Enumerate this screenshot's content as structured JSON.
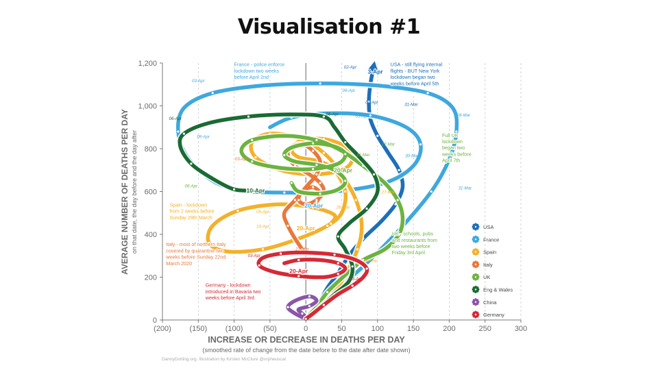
{
  "slide": {
    "title": "Visualisation #1"
  },
  "credit": "DannyDorling.org. Illustration by Kirsten McClure @orpheuscat",
  "chart_data": {
    "type": "line",
    "title": "",
    "xlabel": "INCREASE OR DECREASE IN DEATHS PER DAY",
    "xlabel_sub": "(smoothed rate of change from the date before to the date after date shown)",
    "ylabel": "AVERAGE NUMBER OF DEATHS PER DAY",
    "ylabel_sub": "on that date, the day before and the day after",
    "xlim": [
      -200,
      300
    ],
    "ylim": [
      0,
      1200
    ],
    "x_ticks": [
      -200,
      -150,
      -100,
      -50,
      0,
      50,
      100,
      150,
      200,
      250,
      300
    ],
    "x_tick_labels": [
      "(200)",
      "(150)",
      "(100)",
      "(50)",
      "0",
      "50",
      "100",
      "150",
      "200",
      "250",
      "300"
    ],
    "y_ticks": [
      0,
      200,
      400,
      600,
      800,
      1000,
      1200
    ],
    "y_tick_labels": [
      "0",
      "200",
      "400",
      "600",
      "800",
      "1,000",
      "1,200"
    ],
    "grid": "vertical dashed",
    "legend_position": "right",
    "series": [
      {
        "name": "USA",
        "color": "#1d6fb8",
        "points": [
          [
            2,
            5
          ],
          [
            10,
            40
          ],
          [
            20,
            90
          ],
          [
            30,
            150
          ],
          [
            45,
            220
          ],
          [
            60,
            300
          ],
          [
            80,
            380
          ],
          [
            105,
            460
          ],
          [
            125,
            540
          ],
          [
            135,
            620
          ],
          [
            130,
            700
          ],
          [
            115,
            780
          ],
          [
            100,
            860
          ],
          [
            90,
            940
          ],
          [
            88,
            1020
          ],
          [
            90,
            1100
          ],
          [
            95,
            1190
          ]
        ]
      },
      {
        "name": "France",
        "color": "#3ea8de",
        "points": [
          [
            0,
            5
          ],
          [
            12,
            40
          ],
          [
            25,
            80
          ],
          [
            45,
            150
          ],
          [
            80,
            250
          ],
          [
            130,
            420
          ],
          [
            175,
            600
          ],
          [
            200,
            750
          ],
          [
            210,
            880
          ],
          [
            205,
            990
          ],
          [
            170,
            1060
          ],
          [
            100,
            1095
          ],
          [
            20,
            1105
          ],
          [
            -60,
            1095
          ],
          [
            -130,
            1060
          ],
          [
            -170,
            990
          ],
          [
            -178,
            880
          ],
          [
            -165,
            760
          ],
          [
            -130,
            650
          ],
          [
            -90,
            605
          ],
          [
            -30,
            595
          ],
          [
            40,
            600
          ],
          [
            110,
            640
          ],
          [
            150,
            720
          ],
          [
            160,
            820
          ],
          [
            140,
            900
          ],
          [
            90,
            955
          ],
          [
            30,
            965
          ],
          [
            -20,
            945
          ],
          [
            -50,
            900
          ]
        ]
      },
      {
        "name": "Spain",
        "color": "#f3b12a",
        "points": [
          [
            0,
            5
          ],
          [
            15,
            40
          ],
          [
            35,
            110
          ],
          [
            55,
            210
          ],
          [
            72,
            330
          ],
          [
            78,
            440
          ],
          [
            70,
            560
          ],
          [
            50,
            680
          ],
          [
            25,
            780
          ],
          [
            -10,
            850
          ],
          [
            -50,
            870
          ],
          [
            -75,
            830
          ],
          [
            -70,
            760
          ],
          [
            -35,
            700
          ],
          [
            10,
            680
          ],
          [
            50,
            700
          ],
          [
            65,
            750
          ],
          [
            55,
            810
          ],
          [
            25,
            845
          ],
          [
            -5,
            840
          ],
          [
            -20,
            800
          ],
          [
            -10,
            760
          ],
          [
            20,
            740
          ],
          [
            40,
            700
          ],
          [
            55,
            600
          ],
          [
            50,
            500
          ],
          [
            30,
            440
          ],
          [
            -10,
            380
          ],
          [
            -60,
            330
          ],
          [
            -110,
            320
          ],
          [
            -135,
            360
          ],
          [
            -130,
            440
          ],
          [
            -95,
            510
          ],
          [
            -40,
            540
          ],
          [
            10,
            525
          ],
          [
            40,
            490
          ],
          [
            35,
            450
          ]
        ]
      },
      {
        "name": "Italy",
        "color": "#e8793b",
        "points": [
          [
            -5,
            330
          ],
          [
            -15,
            380
          ],
          [
            -25,
            440
          ],
          [
            -30,
            500
          ],
          [
            -15,
            560
          ],
          [
            0,
            620
          ],
          [
            15,
            680
          ],
          [
            20,
            740
          ],
          [
            10,
            790
          ],
          [
            -5,
            820
          ],
          [
            -20,
            810
          ],
          [
            -25,
            770
          ],
          [
            -15,
            720
          ],
          [
            5,
            680
          ],
          [
            20,
            640
          ],
          [
            25,
            600
          ],
          [
            15,
            560
          ],
          [
            0,
            540
          ],
          [
            -10,
            560
          ],
          [
            -5,
            600
          ],
          [
            10,
            620
          ],
          [
            20,
            590
          ],
          [
            15,
            550
          ]
        ]
      },
      {
        "name": "UK",
        "color": "#6cb33f",
        "points": [
          [
            0,
            10
          ],
          [
            15,
            60
          ],
          [
            30,
            130
          ],
          [
            55,
            210
          ],
          [
            80,
            280
          ],
          [
            110,
            330
          ],
          [
            130,
            400
          ],
          [
            135,
            480
          ],
          [
            128,
            560
          ],
          [
            110,
            640
          ],
          [
            80,
            720
          ],
          [
            50,
            790
          ],
          [
            15,
            840
          ],
          [
            -30,
            860
          ],
          [
            -75,
            840
          ],
          [
            -90,
            790
          ],
          [
            -75,
            740
          ],
          [
            -35,
            710
          ],
          [
            10,
            705
          ],
          [
            45,
            730
          ],
          [
            55,
            775
          ],
          [
            40,
            810
          ],
          [
            10,
            825
          ],
          [
            -20,
            805
          ],
          [
            -30,
            770
          ],
          [
            -15,
            740
          ],
          [
            15,
            725
          ],
          [
            40,
            700
          ],
          [
            55,
            650
          ],
          [
            45,
            610
          ],
          [
            20,
            590
          ],
          [
            -10,
            600
          ],
          [
            -20,
            640
          ]
        ]
      },
      {
        "name": "Eng & Wales",
        "color": "#1a6b33",
        "points": [
          [
            5,
            10
          ],
          [
            20,
            60
          ],
          [
            40,
            120
          ],
          [
            60,
            180
          ],
          [
            65,
            250
          ],
          [
            55,
            330
          ],
          [
            45,
            390
          ],
          [
            60,
            450
          ],
          [
            85,
            520
          ],
          [
            100,
            600
          ],
          [
            95,
            680
          ],
          [
            75,
            760
          ],
          [
            55,
            830
          ],
          [
            40,
            900
          ],
          [
            25,
            950
          ],
          [
            -20,
            960
          ],
          [
            -80,
            950
          ],
          [
            -135,
            920
          ],
          [
            -170,
            870
          ],
          [
            -175,
            810
          ],
          [
            -160,
            730
          ],
          [
            -130,
            660
          ],
          [
            -100,
            610
          ],
          [
            -75,
            605
          ]
        ]
      },
      {
        "name": "China",
        "color": "#8a56a8",
        "points": [
          [
            0,
            5
          ],
          [
            -15,
            30
          ],
          [
            -25,
            60
          ],
          [
            -15,
            90
          ],
          [
            5,
            110
          ],
          [
            15,
            90
          ],
          [
            5,
            65
          ],
          [
            -10,
            50
          ],
          [
            -5,
            30
          ],
          [
            0,
            15
          ]
        ]
      },
      {
        "name": "Germany",
        "color": "#d42a35",
        "points": [
          [
            0,
            5
          ],
          [
            10,
            30
          ],
          [
            25,
            70
          ],
          [
            45,
            120
          ],
          [
            65,
            160
          ],
          [
            80,
            200
          ],
          [
            85,
            240
          ],
          [
            70,
            280
          ],
          [
            40,
            305
          ],
          [
            0,
            315
          ],
          [
            -35,
            310
          ],
          [
            -60,
            290
          ],
          [
            -65,
            255
          ],
          [
            -45,
            225
          ],
          [
            -10,
            205
          ],
          [
            25,
            200
          ],
          [
            45,
            215
          ],
          [
            55,
            240
          ],
          [
            45,
            265
          ],
          [
            20,
            280
          ],
          [
            -10,
            280
          ],
          [
            -30,
            265
          ]
        ]
      }
    ],
    "date_labels": [
      {
        "text": "3-Apr",
        "x": 97,
        "y": 1150,
        "series": "USA",
        "bold": true
      },
      {
        "text": "02-Apr",
        "x": 62,
        "y": 1175,
        "series": "USA"
      },
      {
        "text": "01-Apr",
        "x": 92,
        "y": 1010,
        "series": "USA"
      },
      {
        "text": "31-Mar",
        "x": 147,
        "y": 1000,
        "series": "USA"
      },
      {
        "text": "03-Apr",
        "x": -150,
        "y": 1110,
        "series": "France"
      },
      {
        "text": "06-Apr",
        "x": 60,
        "y": 1065,
        "series": "France"
      },
      {
        "text": "05-Apr",
        "x": 78,
        "y": 945,
        "series": "France"
      },
      {
        "text": "09-Apr",
        "x": -143,
        "y": 850,
        "series": "France"
      },
      {
        "text": "20-Apr",
        "x": 11,
        "y": 525,
        "series": "France",
        "bold": true
      },
      {
        "text": "28-Mar",
        "x": 220,
        "y": 950,
        "series": "France"
      },
      {
        "text": "30-Mar",
        "x": 148,
        "y": 760,
        "series": "France"
      },
      {
        "text": "31-Mar",
        "x": 222,
        "y": 610,
        "series": "France"
      },
      {
        "text": "06-Apr",
        "x": -182,
        "y": 935,
        "series": "Eng & Wales"
      },
      {
        "text": "10-Apr",
        "x": -70,
        "y": 595,
        "series": "Eng & Wales",
        "bold": true
      },
      {
        "text": "06-Apr",
        "x": 37,
        "y": 955,
        "series": "Eng & Wales"
      },
      {
        "text": "06-Apr",
        "x": -160,
        "y": 620,
        "series": "UK"
      },
      {
        "text": "20-Apr",
        "x": 52,
        "y": 690,
        "series": "UK",
        "bold": true
      },
      {
        "text": "31-Mar",
        "x": 80,
        "y": 765,
        "series": "UK"
      },
      {
        "text": "27-Mar",
        "x": 115,
        "y": 815,
        "series": "UK"
      },
      {
        "text": "27-Mar",
        "x": 115,
        "y": 590,
        "series": "Spain"
      },
      {
        "text": "26-Mar",
        "x": 52,
        "y": 520,
        "series": "Spain"
      },
      {
        "text": "20-Apr",
        "x": 0,
        "y": 420,
        "series": "Spain",
        "bold": true
      },
      {
        "text": "10-Apr",
        "x": -60,
        "y": 430,
        "series": "Spain"
      },
      {
        "text": "05-Apr",
        "x": -60,
        "y": 500,
        "series": "Spain"
      },
      {
        "text": "03-Apr",
        "x": -90,
        "y": 745,
        "series": "Italy"
      },
      {
        "text": "27-Mar",
        "x": -5,
        "y": 325,
        "series": "Italy"
      },
      {
        "text": "20-Apr",
        "x": -10,
        "y": 220,
        "series": "Germany",
        "bold": true
      },
      {
        "text": "03-Apr",
        "x": -72,
        "y": 295,
        "series": "Germany"
      },
      {
        "text": "13-Apr",
        "x": 70,
        "y": 185,
        "series": "Germany"
      },
      {
        "text": "26-Mar",
        "x": 90,
        "y": 270,
        "series": "Spain"
      }
    ],
    "annotations": [
      {
        "lines": [
          "France - police enforce",
          "lockdown two weeks",
          "before April 2nd"
        ],
        "color": "#3ea8de",
        "x": -100,
        "y": 1185
      },
      {
        "lines": [
          "USA - still flying internal",
          "flights - BUT New York",
          "lockdown began two",
          "weeks before April 5th"
        ],
        "color": "#1d6fb8",
        "x": 118,
        "y": 1185
      },
      {
        "lines": [
          "Full UK",
          "lockdown",
          "began two",
          "weeks before",
          "April 7th"
        ],
        "color": "#6cb33f",
        "x": 190,
        "y": 855
      },
      {
        "lines": [
          "Spain - lockdown",
          "from 2 weeks before",
          "Sunday 29th March"
        ],
        "color": "#f3b12a",
        "x": -190,
        "y": 530
      },
      {
        "lines": [
          "Italy - most of northern Italy",
          "covered by quarantine two",
          "weeks before Sunday 22nd",
          "March 2020"
        ],
        "color": "#e8793b",
        "x": -195,
        "y": 345
      },
      {
        "lines": [
          "UK - schools, pubs",
          "and restaurants from",
          "two weeks before",
          "Friday 3rd April"
        ],
        "color": "#6cb33f",
        "x": 120,
        "y": 395
      },
      {
        "lines": [
          "Germany - lockdown",
          "introduced in Bavaria two",
          "weeks before April 3rd"
        ],
        "color": "#d42a35",
        "x": -140,
        "y": 155
      }
    ]
  }
}
